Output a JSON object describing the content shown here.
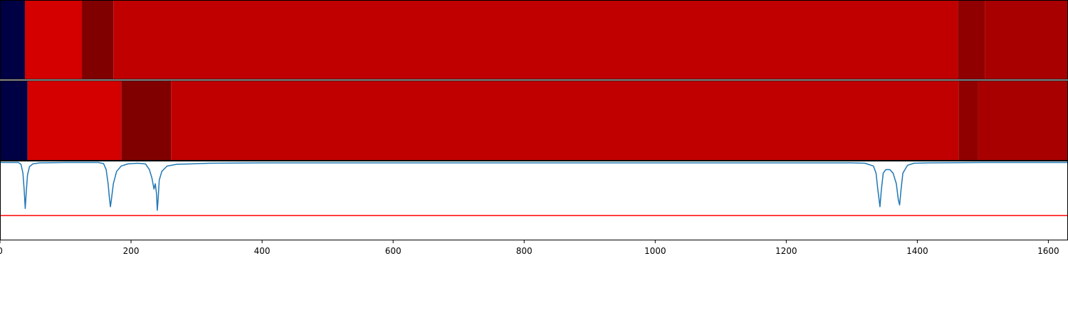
{
  "chart_data": [
    {
      "type": "heatmap",
      "title": "",
      "xlim": [
        0,
        1630
      ],
      "segments": [
        {
          "x0": 0,
          "x1": 38,
          "color": "#000044"
        },
        {
          "x0": 38,
          "x1": 125,
          "color": "#d40000"
        },
        {
          "x0": 125,
          "x1": 173,
          "color": "#800000"
        },
        {
          "x0": 173,
          "x1": 1462,
          "color": "#c00000"
        },
        {
          "x0": 1462,
          "x1": 1503,
          "color": "#900000"
        },
        {
          "x0": 1503,
          "x1": 1630,
          "color": "#a80000"
        }
      ]
    },
    {
      "type": "heatmap",
      "title": "",
      "xlim": [
        0,
        1630
      ],
      "segments": [
        {
          "x0": 0,
          "x1": 42,
          "color": "#000044"
        },
        {
          "x0": 42,
          "x1": 185,
          "color": "#d40000"
        },
        {
          "x0": 185,
          "x1": 261,
          "color": "#800000"
        },
        {
          "x0": 261,
          "x1": 1463,
          "color": "#c00000"
        },
        {
          "x0": 1463,
          "x1": 1493,
          "color": "#900000"
        },
        {
          "x0": 1493,
          "x1": 1630,
          "color": "#a80000"
        }
      ]
    },
    {
      "type": "line",
      "title": "",
      "xlabel": "",
      "ylabel": "",
      "xlim": [
        0,
        1630
      ],
      "ylim": [
        -2.2,
        0.05
      ],
      "x_ticks": [
        0,
        200,
        400,
        600,
        800,
        1000,
        1200,
        1400,
        1600
      ],
      "series": [
        {
          "color": "#1f77b4",
          "points": [
            [
              0,
              0
            ],
            [
              28,
              0
            ],
            [
              32,
              -0.05
            ],
            [
              35,
              -0.3
            ],
            [
              37,
              -0.8
            ],
            [
              38.5,
              -1.3
            ],
            [
              40,
              -0.85
            ],
            [
              42,
              -0.35
            ],
            [
              45,
              -0.12
            ],
            [
              50,
              -0.04
            ],
            [
              60,
              -0.01
            ],
            [
              100,
              0
            ],
            [
              150,
              0
            ],
            [
              158,
              -0.03
            ],
            [
              162,
              -0.2
            ],
            [
              165,
              -0.6
            ],
            [
              167,
              -1.0
            ],
            [
              168.5,
              -1.25
            ],
            [
              170,
              -1.05
            ],
            [
              173,
              -0.6
            ],
            [
              178,
              -0.25
            ],
            [
              185,
              -0.1
            ],
            [
              195,
              -0.04
            ],
            [
              210,
              -0.02
            ],
            [
              222,
              -0.04
            ],
            [
              228,
              -0.2
            ],
            [
              232,
              -0.45
            ],
            [
              235,
              -0.75
            ],
            [
              237,
              -0.6
            ],
            [
              239,
              -0.9
            ],
            [
              240,
              -1.35
            ],
            [
              241.5,
              -1.0
            ],
            [
              243,
              -0.5
            ],
            [
              247,
              -0.25
            ],
            [
              255,
              -0.1
            ],
            [
              270,
              -0.05
            ],
            [
              290,
              -0.04
            ],
            [
              320,
              -0.02
            ],
            [
              400,
              -0.01
            ],
            [
              600,
              -0.01
            ],
            [
              800,
              -0.01
            ],
            [
              1000,
              -0.01
            ],
            [
              1200,
              -0.01
            ],
            [
              1300,
              -0.01
            ],
            [
              1320,
              -0.02
            ],
            [
              1333,
              -0.1
            ],
            [
              1337,
              -0.3
            ],
            [
              1340,
              -0.8
            ],
            [
              1343,
              -1.25
            ],
            [
              1345,
              -0.8
            ],
            [
              1348,
              -0.3
            ],
            [
              1352,
              -0.2
            ],
            [
              1358,
              -0.2
            ],
            [
              1363,
              -0.3
            ],
            [
              1368,
              -0.6
            ],
            [
              1371,
              -1.05
            ],
            [
              1373,
              -1.2
            ],
            [
              1375,
              -0.8
            ],
            [
              1378,
              -0.3
            ],
            [
              1385,
              -0.08
            ],
            [
              1395,
              -0.02
            ],
            [
              1420,
              -0.01
            ],
            [
              1500,
              0
            ],
            [
              1630,
              0
            ]
          ]
        }
      ],
      "threshold": {
        "y": -1.5,
        "color": "#ff0000"
      }
    }
  ]
}
